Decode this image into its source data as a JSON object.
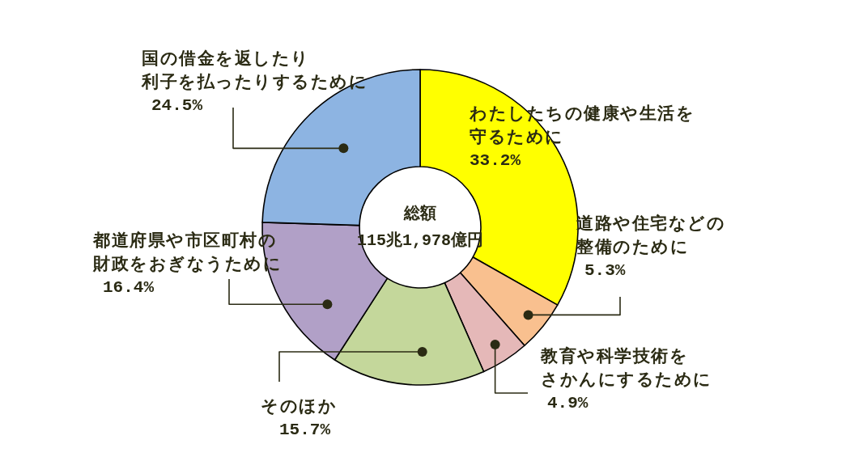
{
  "chart_data": {
    "type": "donut",
    "categories": [
      "わたしたちの健康や生活を守るために",
      "道路や住宅などの整備のために",
      "教育や科学技術をさかんにするために",
      "そのほか",
      "都道府県や市区町村の財政をおぎなうために",
      "国の借金を返したり利子を払ったりするために"
    ],
    "values": [
      33.2,
      5.3,
      4.9,
      15.7,
      16.4,
      24.5
    ],
    "colors": [
      "#ffff00",
      "#f9c08f",
      "#e5b8b8",
      "#c4d79b",
      "#b1a0c7",
      "#8db4e2"
    ],
    "value_labels": [
      "33.2%",
      "5.3%",
      "4.9%",
      "15.7%",
      "16.4%",
      "24.5%"
    ],
    "annotations": [
      "総額",
      "115兆1,978億円"
    ]
  }
}
